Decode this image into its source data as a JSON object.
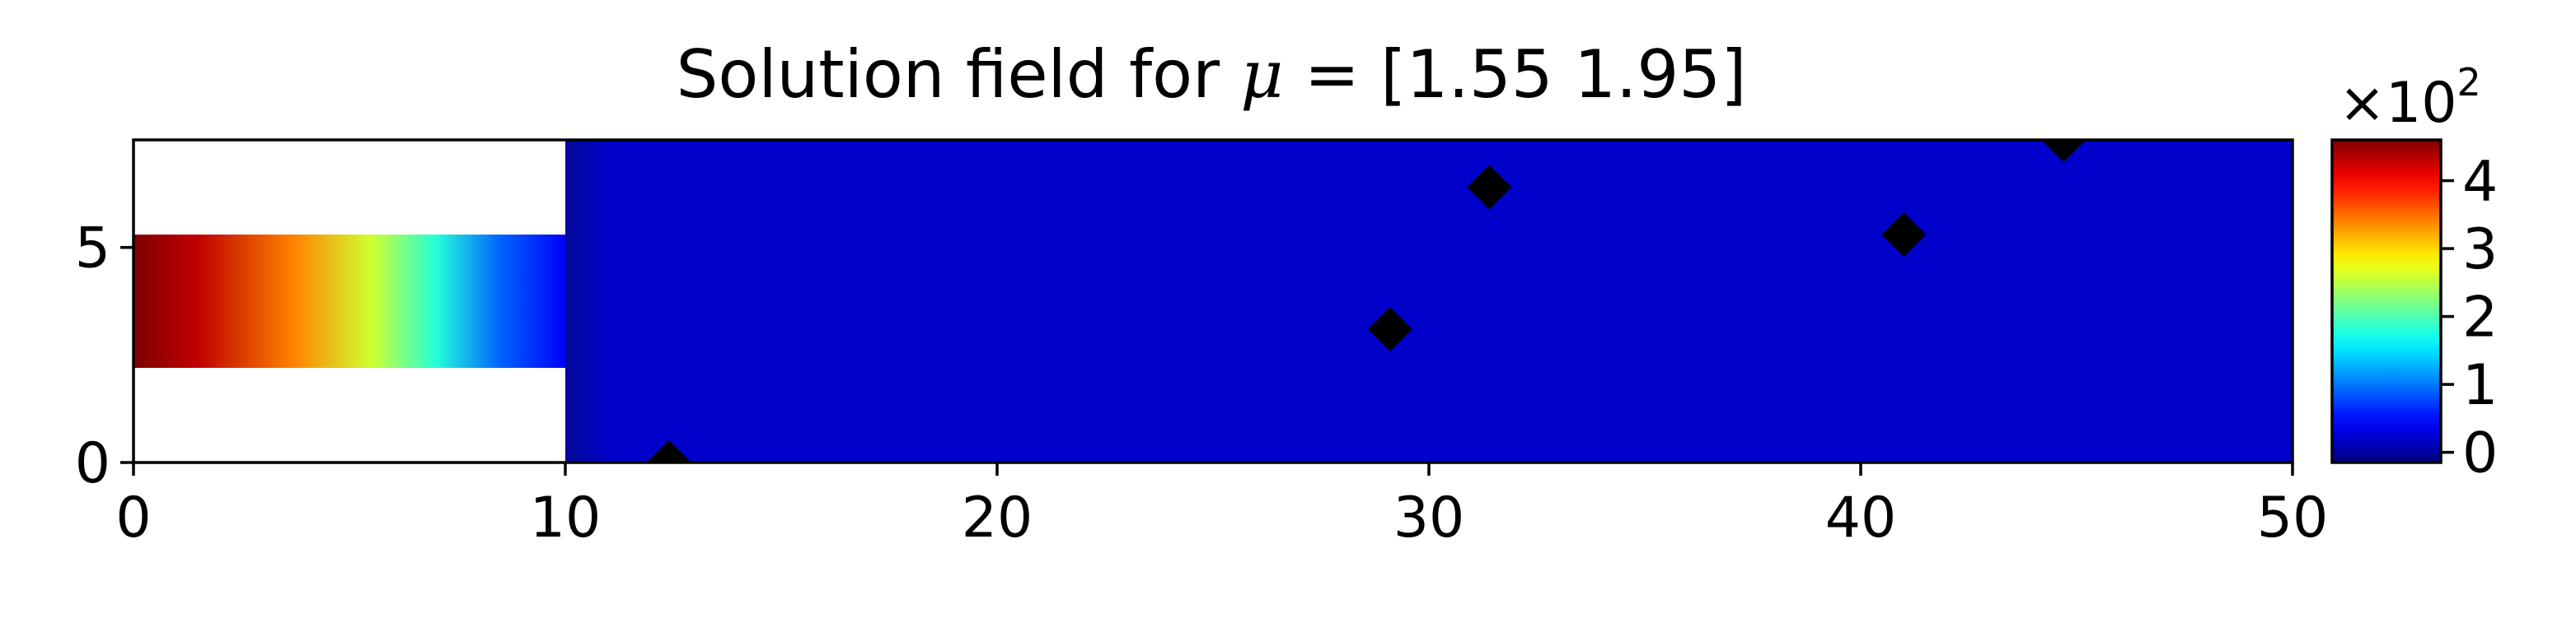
{
  "chart_data": {
    "type": "heatmap",
    "title": "Solution field for μ = [1.55 1.95]",
    "title_parts": {
      "prefix": "Solution field for ",
      "symbol": "μ",
      "suffix": " = [1.55 1.95]"
    },
    "xlim": [
      0,
      50
    ],
    "ylim": [
      0,
      7.5
    ],
    "x_ticks": [
      0,
      10,
      20,
      30,
      40,
      50
    ],
    "y_ticks": [
      0,
      5
    ],
    "x_tick_labels": [
      "0",
      "10",
      "20",
      "30",
      "40",
      "50"
    ],
    "y_tick_labels": [
      "0",
      "5"
    ],
    "colormap": "jet",
    "domain": {
      "inlet_channel": {
        "x": [
          0,
          10
        ],
        "y": [
          2.2,
          5.3
        ]
      },
      "main_chamber": {
        "x": [
          10,
          50
        ],
        "y": [
          0,
          7.5
        ]
      }
    },
    "field": {
      "inlet_gradient": [
        {
          "x": 0,
          "value": 4.6
        },
        {
          "x": 1.5,
          "value": 4.3
        },
        {
          "x": 3.7,
          "value": 3.4
        },
        {
          "x": 5.5,
          "value": 2.6
        },
        {
          "x": 7.0,
          "value": 1.8
        },
        {
          "x": 8.5,
          "value": 0.9
        },
        {
          "x": 10,
          "value": 0.4
        }
      ],
      "chamber_value": 0.2
    },
    "markers": {
      "shape": "diamond",
      "color": "#000000",
      "points": [
        {
          "x": 12.4,
          "y": 0.0
        },
        {
          "x": 29.1,
          "y": 3.1
        },
        {
          "x": 31.4,
          "y": 6.4
        },
        {
          "x": 41.0,
          "y": 5.3
        },
        {
          "x": 44.7,
          "y": 7.5
        }
      ]
    },
    "colorbar": {
      "range": [
        -0.15,
        4.6
      ],
      "ticks": [
        0,
        1,
        2,
        3,
        4
      ],
      "tick_labels": [
        "0",
        "1",
        "2",
        "3",
        "4"
      ],
      "multiplier_base": "×10",
      "multiplier_exponent": "2"
    }
  }
}
